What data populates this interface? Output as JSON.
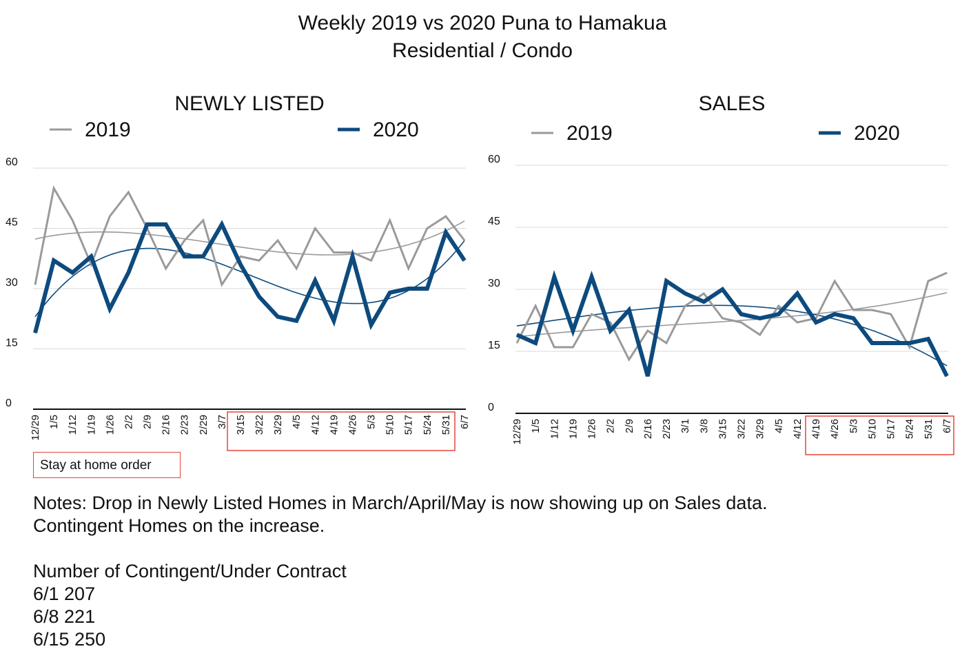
{
  "title": {
    "line1": "Weekly 2019 vs 2020 Puna to Hamakua",
    "line2": "Residential / Condo"
  },
  "colors": {
    "series_2019": "#9a9a9a",
    "series_2020": "#0d4a7e",
    "highlight_box": "#e0463c",
    "grid": "#d9d9d9"
  },
  "chart_data": [
    {
      "type": "line",
      "title": "NEWLY LISTED",
      "categories": [
        "12/29",
        "1/5",
        "1/12",
        "1/19",
        "1/26",
        "2/2",
        "2/9",
        "2/16",
        "2/23",
        "2/29",
        "3/7",
        "3/15",
        "3/22",
        "3/29",
        "4/5",
        "4/12",
        "4/19",
        "4/26",
        "5/3",
        "5/10",
        "5/17",
        "5/24",
        "5/31",
        "6/7"
      ],
      "series": [
        {
          "name": "2019",
          "color": "#9a9a9a",
          "values": [
            31,
            55,
            47,
            36,
            48,
            54,
            45,
            35,
            42,
            47,
            31,
            38,
            37,
            42,
            35,
            45,
            39,
            39,
            37,
            47,
            35,
            45,
            48,
            42
          ]
        },
        {
          "name": "2020",
          "color": "#0d4a7e",
          "values": [
            19,
            37,
            34,
            38,
            25,
            34,
            46,
            46,
            38,
            38,
            46,
            36,
            28,
            23,
            22,
            32,
            22,
            38,
            21,
            29,
            30,
            30,
            44,
            37
          ]
        }
      ],
      "ylim": [
        0,
        60
      ],
      "yticks": [
        "0",
        "15",
        "30",
        "45",
        "60"
      ],
      "trendlines": "polynomial",
      "highlight_range": [
        "3/15",
        "5/31"
      ],
      "legend": "top"
    },
    {
      "type": "line",
      "title": "SALES",
      "categories": [
        "12/29",
        "1/5",
        "1/12",
        "1/19",
        "1/26",
        "2/2",
        "2/9",
        "2/16",
        "2/23",
        "3/1",
        "3/8",
        "3/15",
        "3/22",
        "3/29",
        "4/5",
        "4/12",
        "4/19",
        "4/26",
        "5/3",
        "5/10",
        "5/17",
        "5/24",
        "5/31",
        "6/7"
      ],
      "series": [
        {
          "name": "2019",
          "color": "#9a9a9a",
          "values": [
            17,
            26,
            16,
            16,
            24,
            22,
            13,
            20,
            17,
            26,
            29,
            23,
            22,
            19,
            26,
            22,
            23,
            32,
            25,
            25,
            24,
            16,
            32,
            34
          ]
        },
        {
          "name": "2020",
          "color": "#0d4a7e",
          "values": [
            19,
            17,
            33,
            20,
            33,
            20,
            25,
            9,
            32,
            29,
            27,
            30,
            24,
            23,
            24,
            29,
            22,
            24,
            23,
            17,
            17,
            17,
            18,
            9
          ]
        }
      ],
      "ylim": [
        0,
        60
      ],
      "yticks": [
        "0",
        "15",
        "30",
        "45",
        "60"
      ],
      "trendlines": "polynomial",
      "highlight_range": [
        "4/19",
        "6/7"
      ],
      "legend": "top"
    }
  ],
  "annotation": {
    "stay_home_label": "Stay at home order"
  },
  "notes": {
    "line1": "Notes: Drop in Newly Listed Homes in March/April/May is now showing up on Sales data.",
    "line2": "Contingent Homes on the increase.",
    "contingent_heading": "Number of Contingent/Under Contract",
    "contingent_rows": [
      "6/1 207",
      "6/8 221",
      "6/15 250"
    ]
  }
}
